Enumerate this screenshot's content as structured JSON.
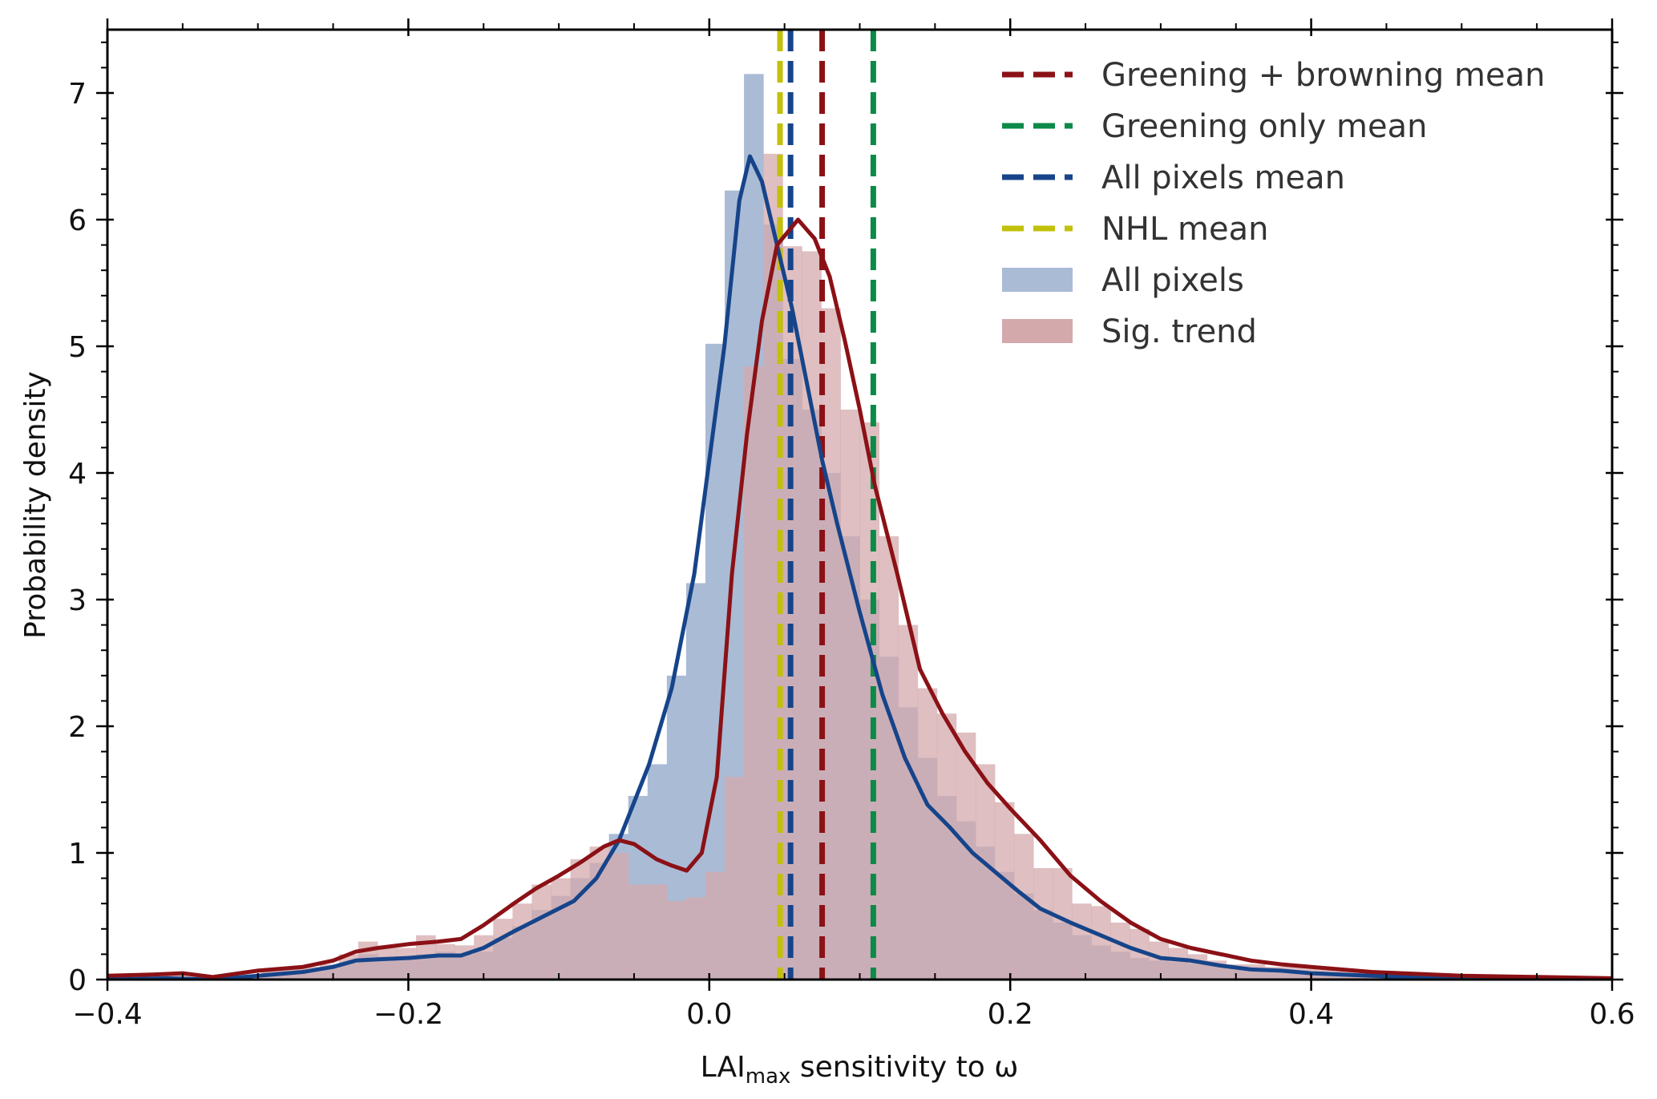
{
  "chart_data": {
    "type": "bar",
    "title": "",
    "xlabel": "LAImax sensitivity to ω",
    "xlabel_parts": {
      "main": "LAI",
      "subscript": "max",
      "rest": " sensitivity to ω"
    },
    "ylabel": "Probability density",
    "xlim": [
      -0.4,
      0.6
    ],
    "ylim": [
      0,
      7.5
    ],
    "grid": false,
    "legend_position": "top-right",
    "x_ticks": [
      -0.4,
      -0.2,
      0.0,
      0.2,
      0.4,
      0.6
    ],
    "x_tick_labels": [
      "−0.4",
      "−0.2",
      "0.0",
      "0.2",
      "0.4",
      "0.6"
    ],
    "x_minor_step": 0.05,
    "y_ticks": [
      0,
      1,
      2,
      3,
      4,
      5,
      6,
      7
    ],
    "y_tick_labels": [
      "0",
      "1",
      "2",
      "3",
      "4",
      "5",
      "6",
      "7"
    ],
    "y_minor_step": 0.2,
    "histograms": {
      "bin_start": -0.4,
      "bin_width": 0.01282,
      "series": [
        {
          "name": "All pixels",
          "color": "#aabbd5",
          "values": [
            0.03,
            0.03,
            0.03,
            0.03,
            0.02,
            0.02,
            0.02,
            0.03,
            0.05,
            0.06,
            0.07,
            0.09,
            0.13,
            0.2,
            0.18,
            0.17,
            0.2,
            0.22,
            0.2,
            0.22,
            0.33,
            0.42,
            0.55,
            0.66,
            0.8,
            0.92,
            1.15,
            1.45,
            1.7,
            2.4,
            3.13,
            5.02,
            6.23,
            7.15,
            5.96,
            4.9,
            4.5,
            4.0,
            3.5,
            3.0,
            2.55,
            2.15,
            1.75,
            1.45,
            1.25,
            1.05,
            0.85,
            0.68,
            0.55,
            0.45,
            0.35,
            0.27,
            0.22,
            0.17,
            0.15,
            0.14,
            0.13,
            0.11,
            0.1,
            0.09,
            0.08,
            0.07,
            0.06,
            0.05,
            0.04,
            0.03,
            0.03,
            0.02,
            0.02,
            0.02,
            0.01,
            0.01,
            0.01,
            0.01,
            0.01,
            0.01,
            0.01,
            0.01
          ]
        },
        {
          "name": "Sig. trend",
          "color": "#d4a9ac",
          "values": [
            0.03,
            0.03,
            0.04,
            0.04,
            0.03,
            0.03,
            0.02,
            0.04,
            0.07,
            0.09,
            0.1,
            0.12,
            0.2,
            0.3,
            0.25,
            0.25,
            0.35,
            0.28,
            0.27,
            0.35,
            0.48,
            0.6,
            0.75,
            0.8,
            0.95,
            1.05,
            1.0,
            0.75,
            0.75,
            0.62,
            0.65,
            0.85,
            1.6,
            4.84,
            6.52,
            5.79,
            5.75,
            5.3,
            4.5,
            4.4,
            3.5,
            2.8,
            2.3,
            2.1,
            1.95,
            1.7,
            1.4,
            1.15,
            0.88,
            0.88,
            0.6,
            0.58,
            0.45,
            0.4,
            0.3,
            0.25,
            0.2,
            0.15,
            0.12,
            0.12,
            0.1,
            0.1,
            0.1,
            0.08,
            0.07,
            0.05,
            0.04,
            0.04,
            0.03,
            0.03,
            0.03,
            0.03,
            0.02,
            0.02,
            0.02,
            0.02,
            0.02,
            0.02
          ]
        }
      ]
    },
    "density_curves": [
      {
        "name": "All pixels KDE",
        "color": "#16448a",
        "x": [
          -0.4,
          -0.36,
          -0.33,
          -0.3,
          -0.27,
          -0.25,
          -0.235,
          -0.22,
          -0.2,
          -0.18,
          -0.165,
          -0.15,
          -0.13,
          -0.11,
          -0.09,
          -0.075,
          -0.06,
          -0.05,
          -0.04,
          -0.025,
          -0.01,
          0.0,
          0.01,
          0.02,
          0.027,
          0.035,
          0.045,
          0.055,
          0.065,
          0.075,
          0.085,
          0.1,
          0.115,
          0.13,
          0.145,
          0.16,
          0.175,
          0.19,
          0.205,
          0.22,
          0.24,
          0.26,
          0.28,
          0.3,
          0.32,
          0.34,
          0.36,
          0.38,
          0.4,
          0.42,
          0.44,
          0.46,
          0.48,
          0.5,
          0.55,
          0.6
        ],
        "y": [
          0.0,
          0.01,
          0.0,
          0.03,
          0.06,
          0.1,
          0.15,
          0.16,
          0.17,
          0.19,
          0.19,
          0.25,
          0.38,
          0.5,
          0.62,
          0.8,
          1.1,
          1.4,
          1.7,
          2.3,
          3.2,
          4.1,
          5.0,
          6.15,
          6.5,
          6.3,
          5.8,
          5.3,
          4.7,
          4.1,
          3.6,
          2.9,
          2.25,
          1.75,
          1.38,
          1.2,
          1.0,
          0.85,
          0.7,
          0.56,
          0.45,
          0.35,
          0.25,
          0.17,
          0.15,
          0.11,
          0.08,
          0.07,
          0.05,
          0.04,
          0.03,
          0.02,
          0.01,
          0.0,
          0.0,
          0.0
        ]
      },
      {
        "name": "Sig. trend KDE",
        "color": "#8b1116",
        "x": [
          -0.4,
          -0.37,
          -0.35,
          -0.33,
          -0.3,
          -0.27,
          -0.25,
          -0.235,
          -0.22,
          -0.2,
          -0.18,
          -0.165,
          -0.15,
          -0.13,
          -0.115,
          -0.1,
          -0.085,
          -0.07,
          -0.06,
          -0.05,
          -0.035,
          -0.025,
          -0.015,
          -0.005,
          0.005,
          0.015,
          0.025,
          0.035,
          0.045,
          0.059,
          0.07,
          0.08,
          0.09,
          0.1,
          0.11,
          0.125,
          0.14,
          0.155,
          0.17,
          0.185,
          0.2,
          0.22,
          0.24,
          0.26,
          0.28,
          0.3,
          0.32,
          0.34,
          0.36,
          0.38,
          0.4,
          0.42,
          0.44,
          0.46,
          0.5,
          0.55,
          0.6
        ],
        "y": [
          0.03,
          0.04,
          0.05,
          0.02,
          0.07,
          0.1,
          0.15,
          0.22,
          0.25,
          0.28,
          0.3,
          0.32,
          0.43,
          0.6,
          0.72,
          0.82,
          0.93,
          1.05,
          1.1,
          1.07,
          0.95,
          0.9,
          0.86,
          1.0,
          1.6,
          3.2,
          4.3,
          5.2,
          5.8,
          6.0,
          5.85,
          5.55,
          5.05,
          4.5,
          3.9,
          3.2,
          2.45,
          2.1,
          1.8,
          1.55,
          1.35,
          1.1,
          0.82,
          0.62,
          0.45,
          0.32,
          0.25,
          0.2,
          0.15,
          0.12,
          0.1,
          0.08,
          0.06,
          0.05,
          0.03,
          0.02,
          0.01
        ]
      }
    ],
    "mean_lines": [
      {
        "name": "Greening + browning mean",
        "x": 0.075,
        "color": "#8b1116"
      },
      {
        "name": "Greening only mean",
        "x": 0.109,
        "color": "#0c8a48"
      },
      {
        "name": "All pixels mean",
        "x": 0.054,
        "color": "#16448a"
      },
      {
        "name": "NHL mean",
        "x": 0.047,
        "color": "#c2c00a"
      }
    ],
    "legend": [
      {
        "label": "Greening + browning mean",
        "kind": "dashed",
        "color": "#8b1116"
      },
      {
        "label": "Greening only mean",
        "kind": "dashed",
        "color": "#0c8a48"
      },
      {
        "label": "All pixels mean",
        "kind": "dashed",
        "color": "#16448a"
      },
      {
        "label": "NHL mean",
        "kind": "dashed",
        "color": "#c2c00a"
      },
      {
        "label": "All pixels",
        "kind": "patch",
        "color": "#aabbd5"
      },
      {
        "label": "Sig. trend",
        "kind": "patch",
        "color": "#d4a9ac"
      }
    ]
  }
}
